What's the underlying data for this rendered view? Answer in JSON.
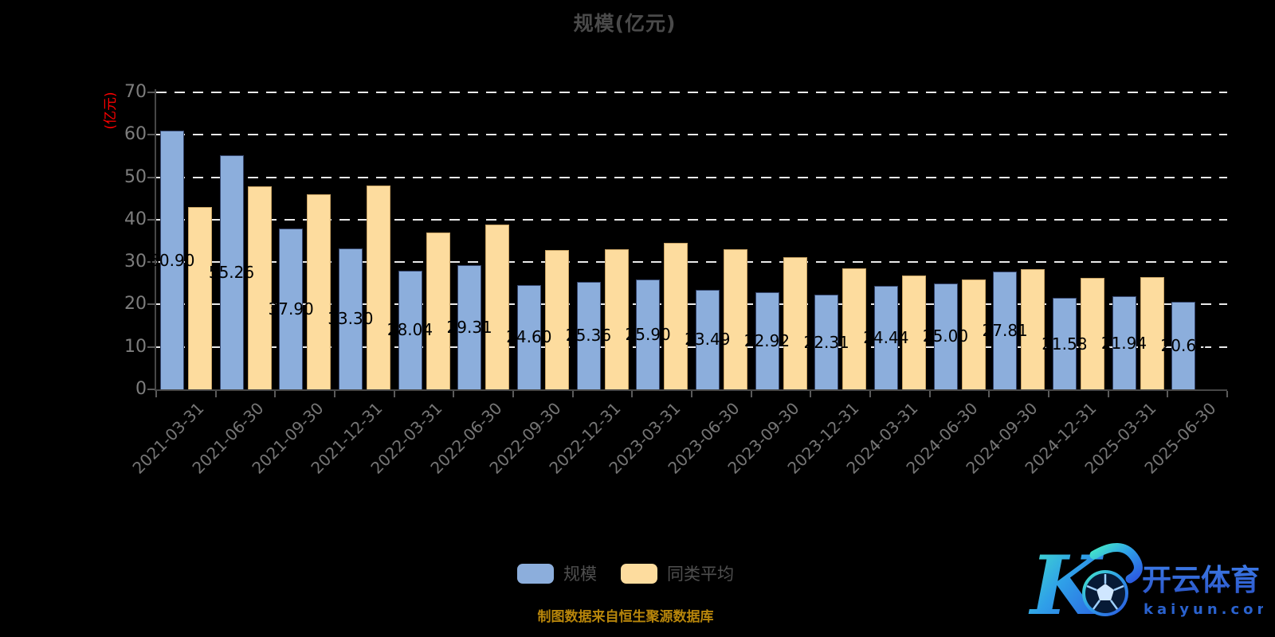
{
  "title": "规模(亿元)",
  "y_axis_name": "(亿元)",
  "footer_note": "制图数据来自恒生聚源数据库",
  "legend": [
    {
      "label": "规模",
      "color": "#8CAEDC"
    },
    {
      "label": "同类平均",
      "color": "#FDDC9E"
    }
  ],
  "watermark": {
    "letter": "K",
    "brand": "开云体育",
    "domain": "kaiyun.com"
  },
  "colors": {
    "background": "#000000",
    "title_text": "#4a4a4a",
    "axis_line": "#474747",
    "tick_label": "#7d7d7d",
    "gridline": "#e9e9e9",
    "y_axis_name_red": "#ff0000",
    "bar_label": "#000000",
    "footer_gold": "#b8860b",
    "watermark_blue": "#2a62ce",
    "watermark_cyan": "#45e8c8"
  },
  "chart_data": {
    "type": "bar",
    "title": "规模(亿元)",
    "xlabel": "",
    "ylabel": "(亿元)",
    "ylim": [
      0,
      70
    ],
    "y_ticks": [
      0,
      10,
      20,
      30,
      40,
      50,
      60,
      70
    ],
    "grid": "horizontal dashed white lines, on",
    "legend_position": "bottom center",
    "categories": [
      "2021-03-31",
      "2021-06-30",
      "2021-09-30",
      "2021-12-31",
      "2022-03-31",
      "2022-06-30",
      "2022-09-30",
      "2022-12-31",
      "2023-03-31",
      "2023-06-30",
      "2023-09-30",
      "2023-12-31",
      "2024-03-31",
      "2024-06-30",
      "2024-09-30",
      "2024-12-31",
      "2025-03-31",
      "2025-06-30"
    ],
    "series": [
      {
        "name": "规模",
        "color": "#8CAEDC",
        "border_color": "#35456B",
        "values": [
          60.9,
          55.26,
          37.9,
          33.3,
          28.04,
          29.31,
          24.6,
          25.36,
          25.9,
          23.49,
          22.92,
          22.31,
          24.44,
          25.0,
          27.81,
          21.58,
          21.94,
          20.6
        ],
        "labels": [
          "60.90",
          "55.26",
          "37.90",
          "33.30",
          "28.04",
          "29.31",
          "24.60",
          "25.36",
          "25.90",
          "23.49",
          "22.92",
          "22.31",
          "24.44",
          "25.00",
          "27.81",
          "21.58",
          "21.94",
          "20.60"
        ]
      },
      {
        "name": "同类平均",
        "color": "#FDDC9E",
        "border_color": "#C7A264",
        "values": [
          43.0,
          47.9,
          46.0,
          48.0,
          36.9,
          38.8,
          32.8,
          33.0,
          34.6,
          33.0,
          31.1,
          28.6,
          26.9,
          25.9,
          28.4,
          26.3,
          26.4,
          null
        ],
        "labels": []
      }
    ]
  }
}
